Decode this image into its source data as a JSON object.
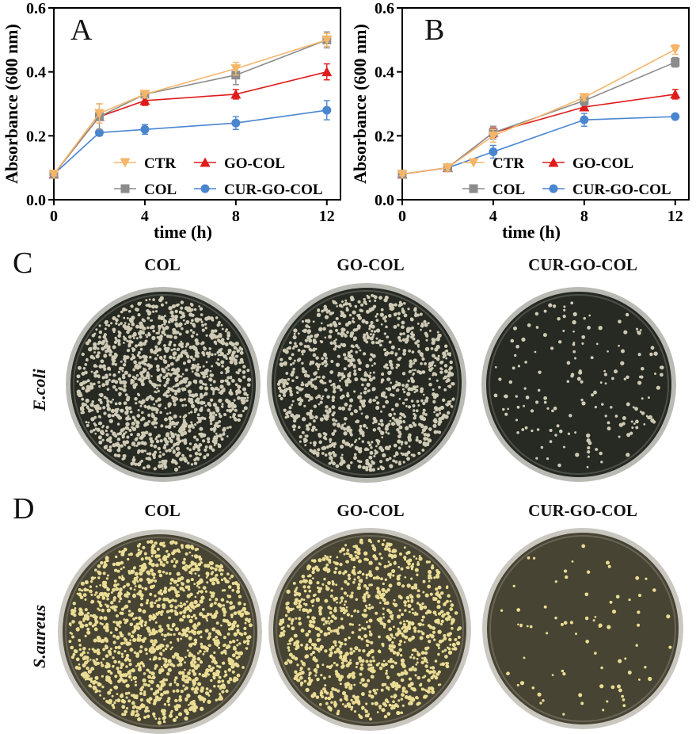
{
  "chart_data": [
    {
      "type": "line",
      "panel": "A",
      "xlabel": "time (h)",
      "ylabel": "Absorbance (600 nm)",
      "x": [
        0,
        2,
        4,
        8,
        12
      ],
      "xticks": [
        "0",
        "4",
        "8",
        "12"
      ],
      "yticks": [
        "0.0",
        "0.2",
        "0.4",
        "0.6"
      ],
      "xlim": [
        0,
        12.6
      ],
      "ylim": [
        0,
        0.6
      ],
      "legend_position": "bottom-right",
      "series": [
        {
          "name": "CTR",
          "color": "#F5B66A",
          "marker": "triangle-down",
          "values": [
            0.08,
            0.27,
            0.33,
            0.41,
            0.5
          ],
          "errors": [
            0.005,
            0.03,
            0.01,
            0.02,
            0.02
          ]
        },
        {
          "name": "GO-COL",
          "color": "#E01B1B",
          "marker": "triangle-up",
          "values": [
            0.08,
            0.26,
            0.31,
            0.33,
            0.4
          ],
          "errors": [
            0.005,
            0.02,
            0.015,
            0.015,
            0.025
          ]
        },
        {
          "name": "COL",
          "color": "#8C8C8C",
          "marker": "square",
          "values": [
            0.08,
            0.26,
            0.33,
            0.39,
            0.5
          ],
          "errors": [
            0.005,
            0.04,
            0.01,
            0.03,
            0.025
          ]
        },
        {
          "name": "CUR-GO-COL",
          "color": "#4A86D0",
          "marker": "circle",
          "values": [
            0.08,
            0.21,
            0.22,
            0.24,
            0.28
          ],
          "errors": [
            0.005,
            0.01,
            0.015,
            0.02,
            0.03
          ]
        }
      ]
    },
    {
      "type": "line",
      "panel": "B",
      "xlabel": "time (h)",
      "ylabel": "Absorbance (600 nm)",
      "x": [
        0,
        2,
        4,
        8,
        12
      ],
      "xticks": [
        "0",
        "4",
        "8",
        "12"
      ],
      "yticks": [
        "0.0",
        "0.2",
        "0.4",
        "0.6"
      ],
      "xlim": [
        0,
        12.6
      ],
      "ylim": [
        0,
        0.6
      ],
      "legend_position": "bottom-right",
      "series": [
        {
          "name": "CTR",
          "color": "#F5B66A",
          "marker": "triangle-down",
          "values": [
            0.08,
            0.1,
            0.2,
            0.32,
            0.47
          ],
          "errors": [
            0.005,
            0.01,
            0.02,
            0.01,
            0.015
          ]
        },
        {
          "name": "GO-COL",
          "color": "#E01B1B",
          "marker": "triangle-up",
          "values": [
            0.08,
            0.1,
            0.21,
            0.29,
            0.33
          ],
          "errors": [
            0.005,
            0.01,
            0.015,
            0.01,
            0.015
          ]
        },
        {
          "name": "COL",
          "color": "#8C8C8C",
          "marker": "square",
          "values": [
            0.08,
            0.1,
            0.21,
            0.31,
            0.43
          ],
          "errors": [
            0.005,
            0.01,
            0.02,
            0.015,
            0.015
          ]
        },
        {
          "name": "CUR-GO-COL",
          "color": "#4A86D0",
          "marker": "circle",
          "values": [
            0.08,
            0.1,
            0.15,
            0.25,
            0.26
          ],
          "errors": [
            0.005,
            0.01,
            0.02,
            0.02,
            0.005
          ]
        }
      ]
    }
  ],
  "panels": {
    "a_letter": "A",
    "b_letter": "B",
    "c_letter": "C",
    "d_letter": "D"
  },
  "plates": {
    "row_c": {
      "organism": "E.coli",
      "titles": [
        "COL",
        "GO-COL",
        "CUR-GO-COL"
      ],
      "agar_color": "#262a22",
      "colony_color": "#cfcab5",
      "relative_colony_density": [
        1.0,
        0.8,
        0.13
      ]
    },
    "row_d": {
      "organism": "S.aureus",
      "titles": [
        "COL",
        "GO-COL",
        "CUR-GO-COL"
      ],
      "agar_color": "#474433",
      "colony_color": "#eadc94",
      "relative_colony_density": [
        1.0,
        0.8,
        0.06
      ]
    }
  }
}
